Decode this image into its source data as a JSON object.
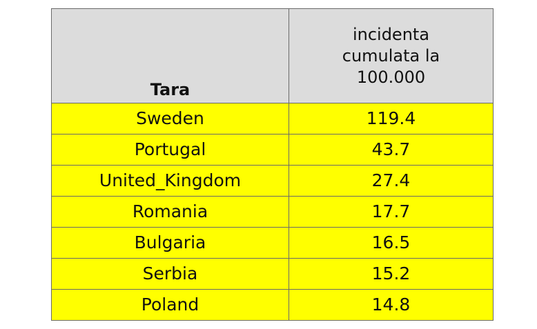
{
  "table": {
    "headers": {
      "country": "Tara",
      "value_lines": [
        "incidenta",
        "cumulata la",
        "100.000"
      ]
    },
    "rows": [
      {
        "country": "Sweden",
        "value": "119.4"
      },
      {
        "country": "Portugal",
        "value": "43.7"
      },
      {
        "country": "United_Kingdom",
        "value": "27.4"
      },
      {
        "country": "Romania",
        "value": "17.7"
      },
      {
        "country": "Bulgaria",
        "value": "16.5"
      },
      {
        "country": "Serbia",
        "value": "15.2"
      },
      {
        "country": "Poland",
        "value": "14.8"
      }
    ]
  },
  "colors": {
    "header_background": "#dcdcdc",
    "row_background": "#ffff00",
    "border": "#6a6a6a"
  }
}
